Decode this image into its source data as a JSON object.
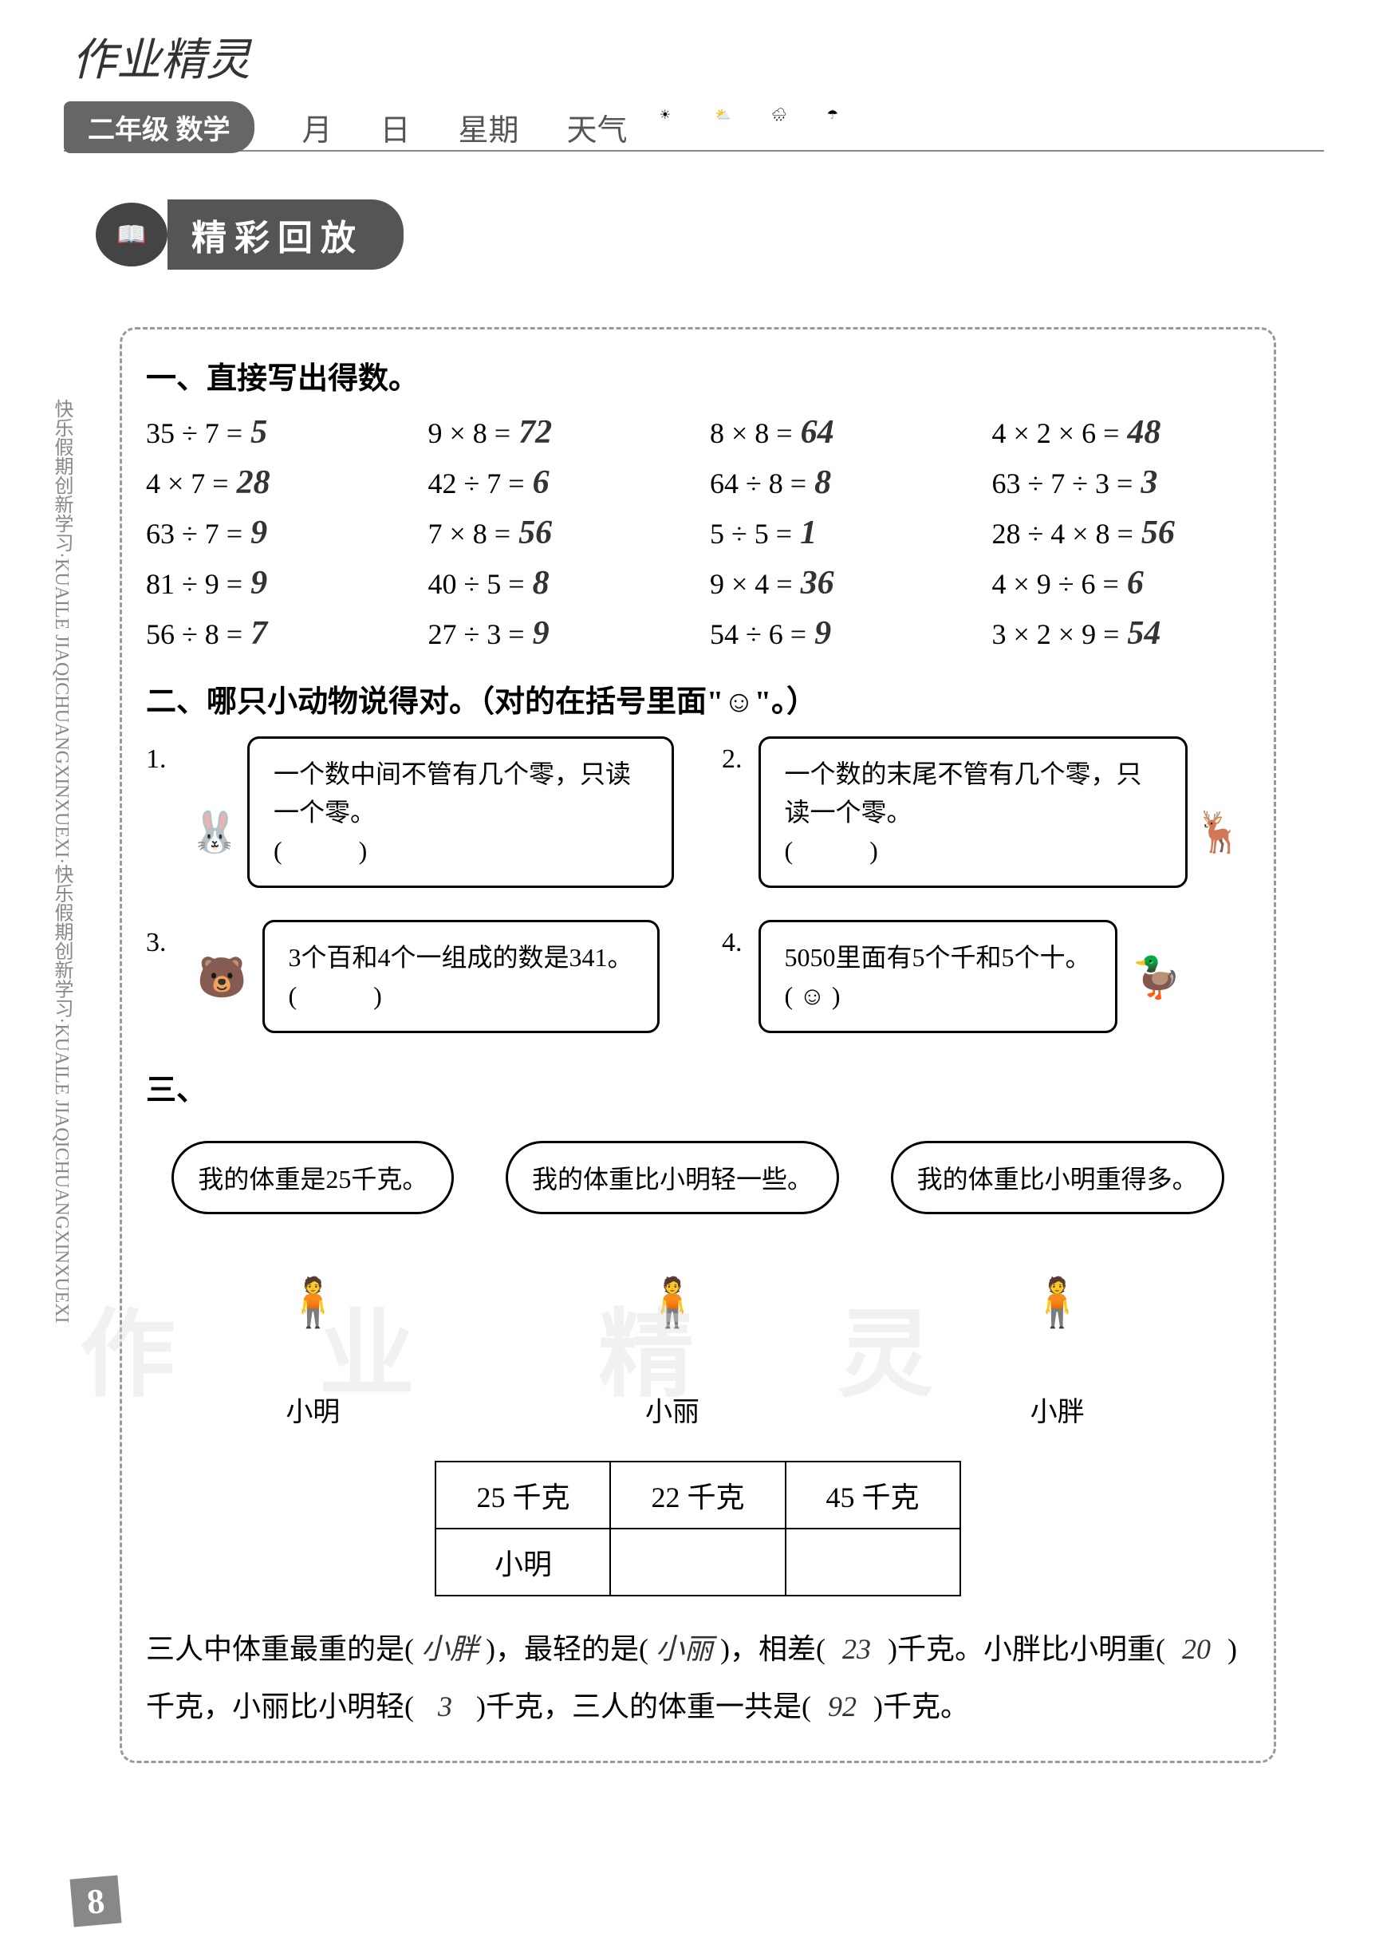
{
  "header": {
    "handwritten_title": "作业精灵",
    "grade_subject": "二年级 数学",
    "month_label": "月",
    "day_label": "日",
    "week_label": "星期",
    "weather_label": "天气"
  },
  "section_badge": {
    "title": "精彩回放"
  },
  "q1": {
    "heading": "一、直接写出得数。",
    "problems": [
      {
        "expr": "35 ÷ 7 =",
        "ans": "5"
      },
      {
        "expr": "9 × 8 =",
        "ans": "72"
      },
      {
        "expr": "8 × 8 =",
        "ans": "64"
      },
      {
        "expr": "4 × 2 × 6 =",
        "ans": "48"
      },
      {
        "expr": "4 × 7 =",
        "ans": "28"
      },
      {
        "expr": "42 ÷ 7 =",
        "ans": "6"
      },
      {
        "expr": "64 ÷ 8 =",
        "ans": "8"
      },
      {
        "expr": "63 ÷ 7 ÷ 3 =",
        "ans": "3"
      },
      {
        "expr": "63 ÷ 7 =",
        "ans": "9"
      },
      {
        "expr": "7 × 8 =",
        "ans": "56"
      },
      {
        "expr": "5 ÷ 5 =",
        "ans": "1"
      },
      {
        "expr": "28 ÷ 4 × 8 =",
        "ans": "56"
      },
      {
        "expr": "81 ÷ 9 =",
        "ans": "9"
      },
      {
        "expr": "40 ÷ 5 =",
        "ans": "8"
      },
      {
        "expr": "9 × 4 =",
        "ans": "36"
      },
      {
        "expr": "4 × 9 ÷ 6 =",
        "ans": "6"
      },
      {
        "expr": "56 ÷ 8 =",
        "ans": "7"
      },
      {
        "expr": "27 ÷ 3 =",
        "ans": "9"
      },
      {
        "expr": "54 ÷ 6 =",
        "ans": "9"
      },
      {
        "expr": "3 × 2 × 9 =",
        "ans": "54"
      }
    ]
  },
  "q2": {
    "heading": "二、哪只小动物说得对。（对的在括号里面\"☺\"。）",
    "items": [
      {
        "num": "1.",
        "text": "一个数中间不管有几个零，只读一个零。",
        "blank": "(　　　)"
      },
      {
        "num": "2.",
        "text": "一个数的末尾不管有几个零，只读一个零。",
        "blank": "(　　　)"
      },
      {
        "num": "3.",
        "text": "3个百和4个一组成的数是341。",
        "blank": "(　　　)"
      },
      {
        "num": "4.",
        "text": "5050里面有5个千和5个十。",
        "blank": "( ☺ )"
      }
    ]
  },
  "q3": {
    "heading": "三、",
    "figures": [
      {
        "bubble": "我的体重是25千克。",
        "name": "小明"
      },
      {
        "bubble": "我的体重比小明轻一些。",
        "name": "小丽"
      },
      {
        "bubble": "我的体重比小明重得多。",
        "name": "小胖"
      }
    ],
    "table": {
      "row1": [
        "25 千克",
        "22 千克",
        "45 千克"
      ],
      "row2": [
        "小明",
        "",
        ""
      ]
    },
    "text_parts": {
      "p1": "三人中体重最重的是(",
      "a1": "小胖",
      "p2": ")，最轻的是(",
      "a2": "小丽",
      "p3": ")，相差(",
      "a3": "23",
      "p4": ")千克。小胖比小明重(",
      "a4": "20",
      "p5": ")千克，小丽比小明轻(",
      "a5": "3",
      "p6": ")千克，三人的体重一共是(",
      "a6": "92",
      "p7": ")千克。"
    }
  },
  "side_text": "快乐假期创新学习·KUAILE JIAQICHUANGXINXUEXI·快乐假期创新学习·KUAILE JIAQICHUANGXINXUEXI",
  "page_number": "8",
  "watermarks": {
    "w1": "作",
    "w2": "业",
    "w3": "精",
    "w4": "灵"
  }
}
